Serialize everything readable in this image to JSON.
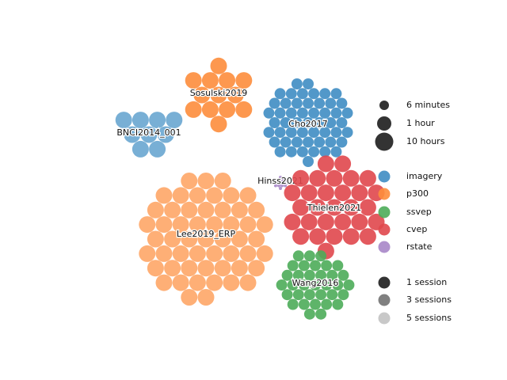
{
  "chart_data": {
    "type": "scatter",
    "title": "",
    "colors": {
      "imagery": "#3f8dc3",
      "p300": "#fd8d3c",
      "ssvep": "#4cac59",
      "cvep": "#e0474c",
      "rstate": "#a786c8",
      "session_dark": "#333333",
      "session_mid": "#808080",
      "session_light": "#c8c8c8"
    },
    "clusters": [
      {
        "label": "Sosulski2019",
        "paradigm": "p300",
        "shade": "dark",
        "subjects": 13,
        "subject_size": "large"
      },
      {
        "label": "BNCI2014_001",
        "paradigm": "imagery",
        "shade": "light",
        "subjects": 9,
        "subject_size": "large"
      },
      {
        "label": "Cho2017",
        "paradigm": "imagery",
        "shade": "dark",
        "subjects": 52,
        "subject_size": "medium"
      },
      {
        "label": "Hinss2021",
        "paradigm": "rstate",
        "shade": "dark",
        "subjects": 15,
        "subject_size": "tiny"
      },
      {
        "label": "Thielen2021",
        "paradigm": "cvep",
        "shade": "dark",
        "subjects": 30,
        "subject_size": "large"
      },
      {
        "label": "Lee2019_ERP",
        "paradigm": "p300",
        "shade": "light",
        "subjects": 54,
        "subject_size": "large"
      },
      {
        "label": "Wang2016",
        "paradigm": "ssvep",
        "shade": "dark",
        "subjects": 34,
        "subject_size": "medium"
      }
    ],
    "legend_size": [
      {
        "label": "6 minutes"
      },
      {
        "label": "1 hour"
      },
      {
        "label": "10 hours"
      }
    ],
    "legend_paradigm": [
      {
        "label": "imagery",
        "key": "imagery"
      },
      {
        "label": "p300",
        "key": "p300"
      },
      {
        "label": "ssvep",
        "key": "ssvep"
      },
      {
        "label": "cvep",
        "key": "cvep"
      },
      {
        "label": "rstate",
        "key": "rstate"
      }
    ],
    "legend_sessions": [
      {
        "label": "1 session",
        "shade": "dark"
      },
      {
        "label": "3 sessions",
        "shade": "mid"
      },
      {
        "label": "5 sessions",
        "shade": "light"
      }
    ]
  }
}
